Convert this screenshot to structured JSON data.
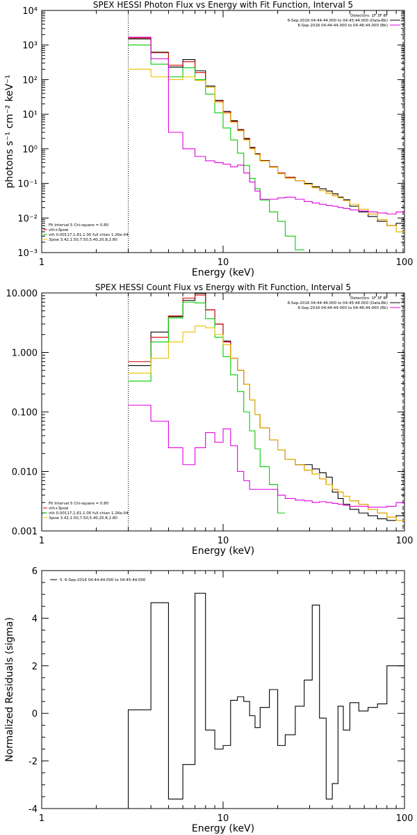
{
  "chart_data": [
    {
      "type": "line",
      "title": "SPEX HESSI Photon Flux vs Energy with Fit Function, Interval 5",
      "xlabel": "Energy (keV)",
      "ylabel": "photons s⁻¹ cm⁻² keV⁻¹",
      "xscale": "log",
      "yscale": "log",
      "xlim": [
        1,
        100
      ],
      "ylim": [
        0.001,
        10000
      ],
      "xticks": [
        {
          "v": 1,
          "label": "1"
        },
        {
          "v": 10,
          "label": "10"
        },
        {
          "v": 100,
          "label": "100"
        }
      ],
      "yticks": [
        {
          "v": 0.001,
          "label": "10⁻³"
        },
        {
          "v": 0.01,
          "label": "10⁻²"
        },
        {
          "v": 0.1,
          "label": "10⁻¹"
        },
        {
          "v": 1,
          "label": "10⁰"
        },
        {
          "v": 10,
          "label": "10¹"
        },
        {
          "v": 100,
          "label": "10²"
        },
        {
          "v": 1000,
          "label": "10³"
        },
        {
          "v": 10000,
          "label": "10⁴"
        }
      ],
      "edges": [
        3,
        4,
        5,
        6,
        7,
        8,
        9,
        10,
        11,
        12,
        13,
        14,
        15,
        16,
        18,
        20,
        22,
        25,
        28,
        31,
        34,
        37,
        40,
        43,
        46,
        50,
        56,
        63,
        71,
        80,
        90,
        100
      ],
      "vline_at": 3,
      "series": [
        {
          "name": "data",
          "color": "#000000",
          "values": [
            1500,
            620,
            230,
            380,
            180,
            65,
            25,
            12,
            6.5,
            3.6,
            2.0,
            1.1,
            0.72,
            0.46,
            0.3,
            0.2,
            0.15,
            0.12,
            0.1,
            0.08,
            0.07,
            0.06,
            0.05,
            0.04,
            0.034,
            0.022,
            0.015,
            0.011,
            0.008,
            0.006,
            0.007
          ]
        },
        {
          "name": "vth+3pow",
          "color": "#d00000",
          "values": [
            1600,
            600,
            260,
            330,
            160,
            60,
            24,
            11.5,
            6.2,
            3.5,
            1.9,
            1.05,
            0.7,
            0.45,
            0.3,
            0.2,
            0.15,
            0.12,
            0.095,
            0.075,
            0.062,
            0.052,
            0.044,
            0.038,
            0.032,
            0.025,
            0.018,
            0.013,
            0.009,
            0.006,
            0.004
          ]
        },
        {
          "name": "vth",
          "color": "#00cc00",
          "values": [
            1000,
            280,
            120,
            220,
            100,
            38,
            11,
            4.0,
            1.8,
            0.75,
            0.33,
            0.14,
            0.07,
            0.033,
            0.015,
            0.008,
            0.003,
            0.0012
          ]
        },
        {
          "name": "3pow",
          "color": "#e6c000",
          "values": [
            200,
            120,
            100,
            120,
            95,
            60,
            22,
            10.5,
            5.8,
            3.3,
            1.8,
            1.0,
            0.68,
            0.44,
            0.29,
            0.19,
            0.14,
            0.12,
            0.095,
            0.075,
            0.062,
            0.052,
            0.044,
            0.038,
            0.032,
            0.025,
            0.018,
            0.013,
            0.009,
            0.006,
            0.004
          ]
        },
        {
          "name": "background",
          "color": "#e000e0",
          "values": [
            1700,
            400,
            3.0,
            1.0,
            0.6,
            0.45,
            0.4,
            0.36,
            0.3,
            0.34,
            0.2,
            0.11,
            0.06,
            0.035,
            0.035,
            0.038,
            0.04,
            0.035,
            0.03,
            0.027,
            0.025,
            0.023,
            0.022,
            0.02,
            0.019,
            0.017,
            0.016,
            0.015,
            0.014,
            0.013,
            0.015
          ]
        }
      ],
      "legend_tr": {
        "lines": [
          {
            "text": "Detectors: 1F 3F 8F",
            "color": ""
          },
          {
            "text": "6-Sep-2016 04:44:44.000 to 04:45:44.000 (Data-Bk)",
            "color": "#000000"
          },
          {
            "text": "6-Sep-2016 04:44:44.000 to 04:46:44.000 (Bk)",
            "color": "#e000e0"
          }
        ]
      },
      "legend_bl": {
        "lines": [
          {
            "text": "Fit Interval 5   Chi-square = 0.80",
            "color": ""
          },
          {
            "text": "vth+3pow",
            "color": "#d00000"
          },
          {
            "text": "vth 0.00117,1.61,1.00  full chian 1.26e-04",
            "color": "#00cc00"
          },
          {
            "text": "3pow 3.42,1.50,7.50,5.40,20.8,2.80",
            "color": "#e6c000"
          }
        ]
      }
    },
    {
      "type": "line",
      "title": "SPEX HESSI Count Flux vs Energy with Fit Function, Interval 5",
      "xlabel": "Energy (keV)",
      "ylabel": "",
      "xscale": "log",
      "yscale": "log",
      "xlim": [
        1,
        100
      ],
      "ylim": [
        0.001,
        10
      ],
      "xticks": [
        {
          "v": 1,
          "label": "1"
        },
        {
          "v": 10,
          "label": "10"
        },
        {
          "v": 100,
          "label": "100"
        }
      ],
      "yticks": [
        {
          "v": 0.001,
          "label": "0.001"
        },
        {
          "v": 0.01,
          "label": "0.010"
        },
        {
          "v": 0.1,
          "label": "0.100"
        },
        {
          "v": 1,
          "label": "1.000"
        },
        {
          "v": 10,
          "label": "10.000"
        }
      ],
      "edges": [
        3,
        4,
        5,
        6,
        7,
        8,
        9,
        10,
        11,
        12,
        13,
        14,
        15,
        16,
        18,
        20,
        22,
        25,
        28,
        31,
        34,
        37,
        40,
        43,
        46,
        50,
        56,
        63,
        71,
        80,
        90,
        100
      ],
      "vline_at": 3,
      "series": [
        {
          "name": "data",
          "color": "#000000",
          "values": [
            0.6,
            2.2,
            4.0,
            7.5,
            9.8,
            5.2,
            3.0,
            1.55,
            0.8,
            0.5,
            0.29,
            0.16,
            0.09,
            0.054,
            0.034,
            0.023,
            0.016,
            0.013,
            0.013,
            0.011,
            0.0095,
            0.008,
            0.0045,
            0.0035,
            0.0028,
            0.0023,
            0.002,
            0.0018,
            0.0016,
            0.0015,
            0.0018
          ]
        },
        {
          "name": "vth+3pow",
          "color": "#d00000",
          "values": [
            0.7,
            1.8,
            4.1,
            8.2,
            9.2,
            5.2,
            3.0,
            1.5,
            0.8,
            0.5,
            0.29,
            0.16,
            0.09,
            0.054,
            0.034,
            0.023,
            0.016,
            0.013,
            0.0105,
            0.009,
            0.0075,
            0.006,
            0.005,
            0.0045,
            0.0038,
            0.0032,
            0.0028,
            0.0023,
            0.002,
            0.0017,
            0.0015
          ]
        },
        {
          "name": "vth",
          "color": "#00cc00",
          "values": [
            0.33,
            1.5,
            3.8,
            7.0,
            6.8,
            3.7,
            1.8,
            0.85,
            0.42,
            0.22,
            0.1,
            0.048,
            0.024,
            0.012,
            0.006,
            0.002
          ]
        },
        {
          "name": "3pow",
          "color": "#e6c000",
          "values": [
            0.45,
            0.8,
            1.5,
            2.2,
            2.8,
            2.6,
            2.0,
            1.35,
            0.8,
            0.5,
            0.29,
            0.16,
            0.09,
            0.054,
            0.034,
            0.023,
            0.016,
            0.013,
            0.0105,
            0.009,
            0.0075,
            0.006,
            0.005,
            0.0045,
            0.0038,
            0.0032,
            0.0028,
            0.0023,
            0.002,
            0.0017,
            0.0015
          ]
        },
        {
          "name": "background",
          "color": "#e000e0",
          "values": [
            0.13,
            0.07,
            0.025,
            0.013,
            0.025,
            0.045,
            0.031,
            0.052,
            0.027,
            0.01,
            0.007,
            0.005,
            0.005,
            0.005,
            0.005,
            0.004,
            0.0035,
            0.0033,
            0.0032,
            0.003,
            0.0031,
            0.003,
            0.0029,
            0.0028,
            0.0027,
            0.0026,
            0.0026,
            0.0025,
            0.0025,
            0.0026,
            0.003
          ]
        }
      ],
      "legend_tr": {
        "lines": [
          {
            "text": "Detectors: 1F 3F 8F",
            "color": ""
          },
          {
            "text": "6-Sep-2016 04:44:44.000 to 04:45:44.000 (Data-Bk)",
            "color": "#000000"
          },
          {
            "text": "6-Sep-2016 04:44:44.000 to 04:46:44.000 (Bk)",
            "color": "#e000e0"
          }
        ]
      },
      "legend_bl": {
        "lines": [
          {
            "text": "Fit Interval 5   Chi-square = 0.80",
            "color": ""
          },
          {
            "text": "vth+3pow",
            "color": "#d00000"
          },
          {
            "text": "vth 0.00117,1.61,1.00  full chian 1.26e-04",
            "color": "#00cc00"
          },
          {
            "text": "3pow 3.42,1.50,7.50,5.40,20.8,2.80",
            "color": "#e6c000"
          }
        ]
      }
    },
    {
      "type": "line",
      "title": "",
      "xlabel": "Energy (keV)",
      "ylabel": "Normalized Residuals (sigma)",
      "xscale": "log",
      "yscale": "linear",
      "xlim": [
        1,
        100
      ],
      "ylim": [
        -4,
        6
      ],
      "xticks": [
        {
          "v": 1,
          "label": "1"
        },
        {
          "v": 10,
          "label": "10"
        },
        {
          "v": 100,
          "label": "100"
        }
      ],
      "yticks": [
        {
          "v": -4,
          "label": "-4"
        },
        {
          "v": -2,
          "label": "-2"
        },
        {
          "v": 0,
          "label": "0"
        },
        {
          "v": 2,
          "label": "2"
        },
        {
          "v": 4,
          "label": "4"
        },
        {
          "v": 6,
          "label": "6"
        }
      ],
      "edges": [
        3,
        4,
        5,
        6,
        7,
        8,
        9,
        10,
        11,
        12,
        13,
        14,
        15,
        16,
        18,
        20,
        22,
        25,
        28,
        31,
        34,
        37,
        40,
        43,
        46,
        50,
        56,
        63,
        71,
        80,
        90,
        100
      ],
      "vline_at": null,
      "series": [
        {
          "name": "5. 6-Sep-2016 04:44:44.000 to 04:45:44.000",
          "color": "#000000",
          "values": [
            0.15,
            4.65,
            -3.6,
            -2.15,
            5.05,
            -0.7,
            -1.5,
            -1.35,
            0.55,
            0.7,
            0.5,
            -0.1,
            -0.6,
            0.25,
            1.0,
            -1.35,
            -0.9,
            0.3,
            1.4,
            4.55,
            -0.2,
            -3.6,
            -2.95,
            0.3,
            -0.7,
            0.45,
            0.1,
            0.25,
            0.4,
            2.0,
            2.0
          ]
        }
      ],
      "drop_at_start": true,
      "legend_tr": null,
      "legend_bl": null,
      "legend_tl": {
        "lines": [
          {
            "text": "5. 6-Sep-2016 04:44:44.000 to 04:45:44.000",
            "color": "#000000"
          }
        ]
      }
    }
  ]
}
